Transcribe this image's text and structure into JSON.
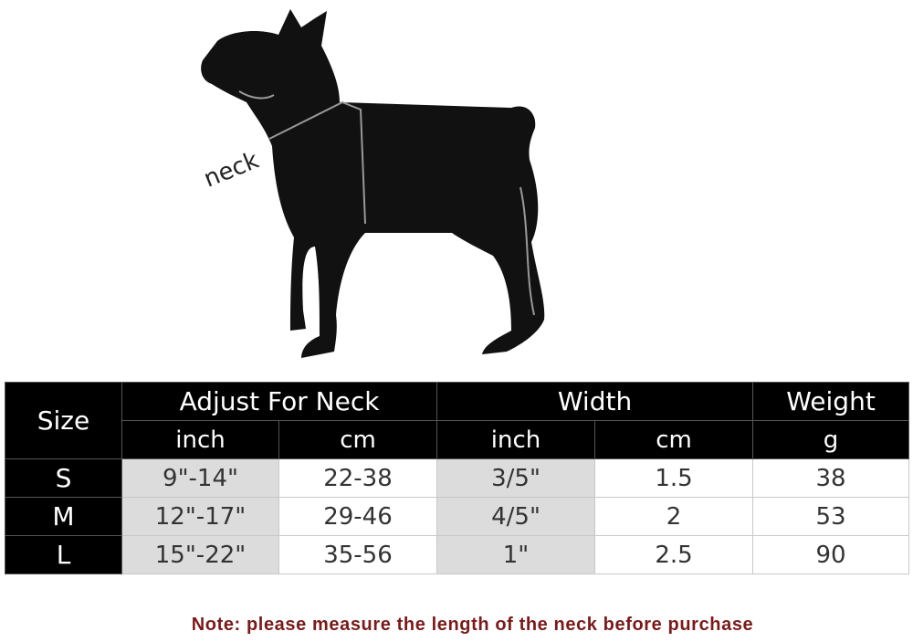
{
  "illustration": {
    "label": "neck"
  },
  "table": {
    "headers": {
      "size": "Size",
      "neck": "Adjust For Neck",
      "width": "Width",
      "weight": "Weight"
    },
    "units": {
      "neck_inch": "inch",
      "neck_cm": "cm",
      "width_inch": "inch",
      "width_cm": "cm",
      "weight": "g"
    },
    "rows": [
      {
        "size": "S",
        "neck_inch": "9\"-14\"",
        "neck_cm": "22-38",
        "width_inch": "3/5\"",
        "width_cm": "1.5",
        "weight": "38"
      },
      {
        "size": "M",
        "neck_inch": "12\"-17\"",
        "neck_cm": "29-46",
        "width_inch": "4/5\"",
        "width_cm": "2",
        "weight": "53"
      },
      {
        "size": "L",
        "neck_inch": "15\"-22\"",
        "neck_cm": "35-56",
        "width_inch": "1\"",
        "width_cm": "2.5",
        "weight": "90"
      }
    ]
  },
  "note": "Note: please measure the length of the neck before purchase"
}
